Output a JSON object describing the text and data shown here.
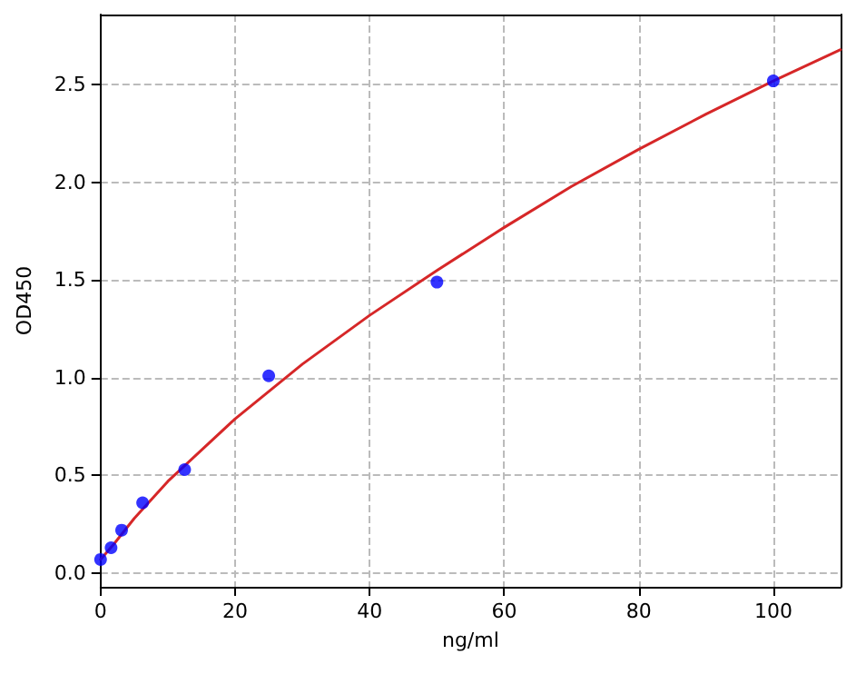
{
  "chart_data": {
    "type": "scatter",
    "xlabel": "ng/ml",
    "ylabel": "OD450",
    "xlim": [
      0,
      110
    ],
    "ylim": [
      -0.07,
      2.86
    ],
    "xticks": [
      0,
      20,
      40,
      60,
      80,
      100
    ],
    "yticks": [
      {
        "value": 0,
        "label": "0.0"
      },
      0.5,
      {
        "value": 1,
        "label": "1.0"
      },
      1.5,
      {
        "value": 2,
        "label": "2.0"
      },
      2.5
    ],
    "grid": true,
    "series": [
      {
        "type": "line",
        "color": "#d62728",
        "marker": "none",
        "line_style": "solid",
        "x": [
          0,
          2,
          5,
          10,
          20,
          30,
          40,
          50,
          60,
          70,
          80,
          90,
          100,
          110
        ],
        "values": [
          0.07,
          0.15,
          0.28,
          0.47,
          0.79,
          1.07,
          1.32,
          1.55,
          1.77,
          1.98,
          2.17,
          2.35,
          2.52,
          2.68
        ]
      },
      {
        "color": "#0000ff",
        "marker": "circle",
        "x": [
          0,
          1.56,
          3.125,
          6.25,
          12.5,
          25,
          50,
          100
        ],
        "values": [
          0.07,
          0.13,
          0.22,
          0.36,
          0.53,
          1.01,
          1.49,
          2.52
        ]
      }
    ]
  }
}
